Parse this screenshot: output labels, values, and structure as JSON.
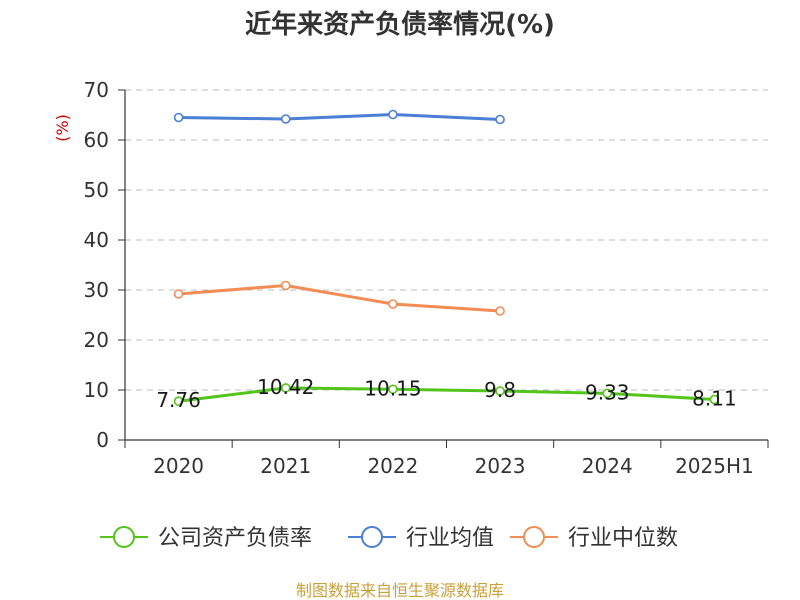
{
  "chart_data": {
    "type": "line",
    "title": "近年来资产负债率情况(%)",
    "ylabel": "(%)",
    "xlabel": "",
    "categories": [
      "2020",
      "2021",
      "2022",
      "2023",
      "2024",
      "2025H1"
    ],
    "ylim": [
      0,
      70
    ],
    "yticks": [
      0,
      10,
      20,
      30,
      40,
      50,
      60,
      70
    ],
    "grid": true,
    "legend_position": "bottom",
    "series": [
      {
        "name": "公司资产负债率",
        "color": "#52c41a",
        "values": [
          7.76,
          10.42,
          10.15,
          9.8,
          9.33,
          8.11
        ],
        "labels": [
          "7.76",
          "10.42",
          "10.15",
          "9.8",
          "9.33",
          "8.11"
        ]
      },
      {
        "name": "行业均值",
        "color": "#4a7fd4",
        "values": [
          64.5,
          64.2,
          65.1,
          64.1,
          null,
          null
        ]
      },
      {
        "name": "行业中位数",
        "color": "#f28c55",
        "values": [
          29.2,
          30.9,
          27.2,
          25.8,
          null,
          null
        ]
      }
    ]
  },
  "footer": {
    "source": "制图数据来自恒生聚源数据库"
  }
}
